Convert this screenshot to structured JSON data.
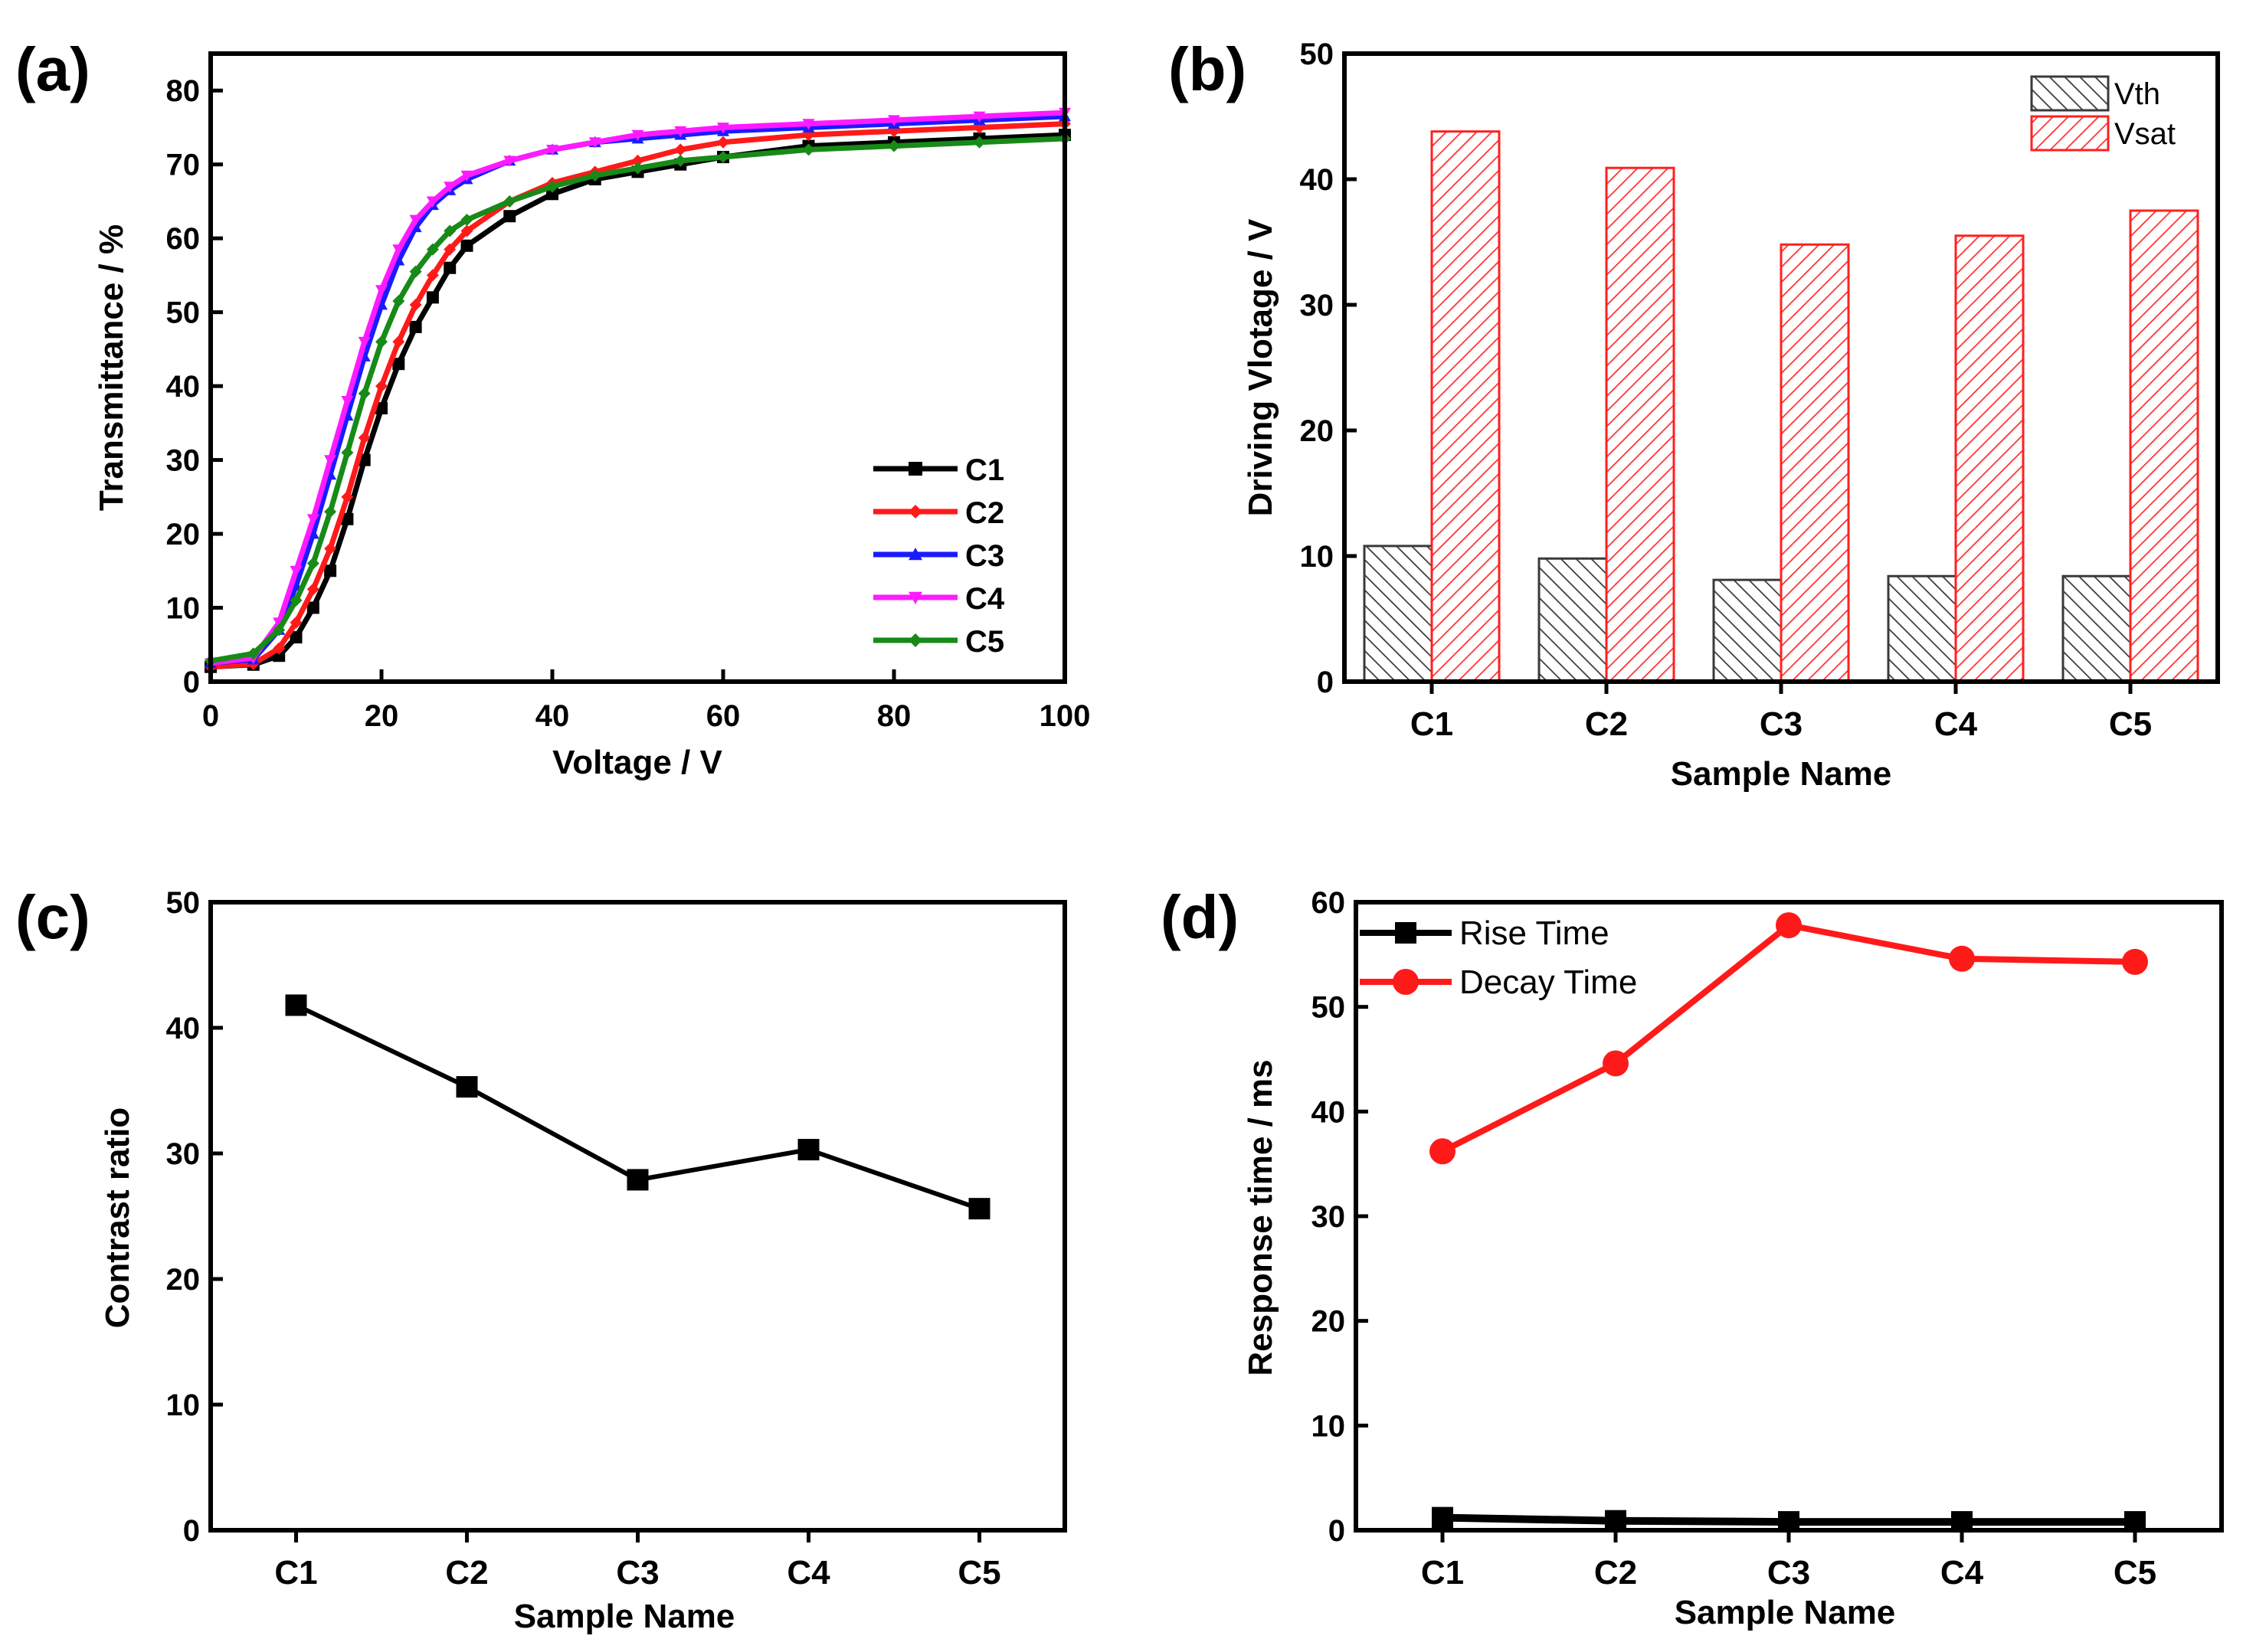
{
  "colors": {
    "axis": "#000000",
    "C1": "#000000",
    "C2": "#ff1a1a",
    "C3": "#1a1aff",
    "C4": "#ff1aff",
    "C5": "#178a17",
    "vth_hatch": "#3a3a3a",
    "vsat_hatch": "#ff3030",
    "vsat_edge": "#ff2020",
    "rise": "#000000",
    "decay": "#ff1a1a"
  },
  "chart_data": [
    {
      "id": "a",
      "panel_label": "(a)",
      "type": "line",
      "xlabel": "Voltage / V",
      "ylabel": "Transmittance / %",
      "xlim": [
        0,
        100
      ],
      "ylim": [
        0,
        85
      ],
      "xticks": [
        "0",
        "20",
        "40",
        "60",
        "80",
        "100"
      ],
      "yticks": [
        "0",
        "10",
        "20",
        "30",
        "40",
        "50",
        "60",
        "70",
        "80"
      ],
      "legend_position": "bottom-right",
      "series": [
        {
          "name": "C1",
          "x": [
            0,
            5,
            8,
            10,
            12,
            14,
            16,
            18,
            20,
            22,
            24,
            26,
            28,
            30,
            35,
            40,
            45,
            50,
            55,
            60,
            70,
            80,
            90,
            100
          ],
          "y": [
            2,
            2.3,
            3.5,
            6,
            10,
            15,
            22,
            30,
            37,
            43,
            48,
            52,
            56,
            59,
            63,
            66,
            68,
            69,
            70,
            71,
            72.5,
            73,
            73.5,
            74
          ]
        },
        {
          "name": "C2",
          "x": [
            0,
            5,
            8,
            10,
            12,
            14,
            16,
            18,
            20,
            22,
            24,
            26,
            28,
            30,
            35,
            40,
            45,
            50,
            55,
            60,
            70,
            80,
            90,
            100
          ],
          "y": [
            2,
            2.4,
            4.5,
            8,
            12.5,
            18,
            25,
            33,
            40,
            46,
            51,
            55,
            58.5,
            61,
            65,
            67.5,
            69,
            70.5,
            72,
            73,
            74,
            74.5,
            75,
            75.5
          ]
        },
        {
          "name": "C3",
          "x": [
            0,
            5,
            8,
            10,
            12,
            14,
            16,
            18,
            20,
            22,
            24,
            26,
            28,
            30,
            35,
            40,
            45,
            50,
            55,
            60,
            70,
            80,
            90,
            100
          ],
          "y": [
            2.5,
            3,
            7,
            13,
            20,
            28,
            36,
            44,
            51,
            57,
            61.5,
            64.5,
            66.5,
            68,
            70.5,
            72,
            73,
            73.5,
            74,
            74.5,
            75,
            75.5,
            76,
            76.5
          ]
        },
        {
          "name": "C4",
          "x": [
            0,
            5,
            8,
            10,
            12,
            14,
            16,
            18,
            20,
            22,
            24,
            26,
            28,
            30,
            35,
            40,
            45,
            50,
            55,
            60,
            70,
            80,
            90,
            100
          ],
          "y": [
            2.5,
            3.2,
            8,
            15,
            22,
            30,
            38,
            46,
            53,
            58.5,
            62.5,
            65,
            67,
            68.5,
            70.5,
            72,
            73,
            74,
            74.5,
            75,
            75.5,
            76,
            76.5,
            77
          ]
        },
        {
          "name": "C5",
          "x": [
            0,
            5,
            8,
            10,
            12,
            14,
            16,
            18,
            20,
            22,
            24,
            26,
            28,
            30,
            35,
            40,
            45,
            50,
            55,
            60,
            70,
            80,
            90,
            100
          ],
          "y": [
            2.8,
            3.8,
            7,
            11,
            16,
            23,
            31,
            39,
            46,
            51.5,
            55.5,
            58.5,
            61,
            62.5,
            65,
            67,
            68.5,
            69.5,
            70.5,
            71,
            72,
            72.5,
            73,
            73.5
          ]
        }
      ]
    },
    {
      "id": "b",
      "panel_label": "(b)",
      "type": "bar",
      "xlabel": "Sample Name",
      "ylabel": "Driving Vlotage / V",
      "ylim": [
        0,
        50
      ],
      "yticks": [
        "0",
        "10",
        "20",
        "30",
        "40",
        "50"
      ],
      "categories": [
        "C1",
        "C2",
        "C3",
        "C4",
        "C5"
      ],
      "legend_position": "top-right",
      "series": [
        {
          "name": "Vth",
          "values": [
            10.8,
            9.8,
            8.1,
            8.4,
            8.4
          ]
        },
        {
          "name": "Vsat",
          "values": [
            43.8,
            40.9,
            34.8,
            35.5,
            37.5
          ]
        }
      ]
    },
    {
      "id": "c",
      "panel_label": "(c)",
      "type": "line",
      "xlabel": "Sample Name",
      "ylabel": "Contrast ratio",
      "ylim": [
        0,
        50
      ],
      "yticks": [
        "0",
        "10",
        "20",
        "30",
        "40",
        "50"
      ],
      "categories": [
        "C1",
        "C2",
        "C3",
        "C4",
        "C5"
      ],
      "series": [
        {
          "name": "Contrast ratio",
          "values": [
            41.8,
            35.3,
            27.9,
            30.3,
            25.6
          ]
        }
      ]
    },
    {
      "id": "d",
      "panel_label": "(d)",
      "type": "line",
      "xlabel": "Sample Name",
      "ylabel": "Response time / ms",
      "ylim": [
        0,
        60
      ],
      "yticks": [
        "0",
        "10",
        "20",
        "30",
        "40",
        "50",
        "60"
      ],
      "categories": [
        "C1",
        "C2",
        "C3",
        "C4",
        "C5"
      ],
      "legend_position": "top-left",
      "series": [
        {
          "name": "Rise Time",
          "values": [
            1.2,
            0.9,
            0.8,
            0.8,
            0.8
          ]
        },
        {
          "name": "Decay Time",
          "values": [
            36.2,
            44.6,
            57.8,
            54.6,
            54.3
          ]
        }
      ]
    }
  ]
}
